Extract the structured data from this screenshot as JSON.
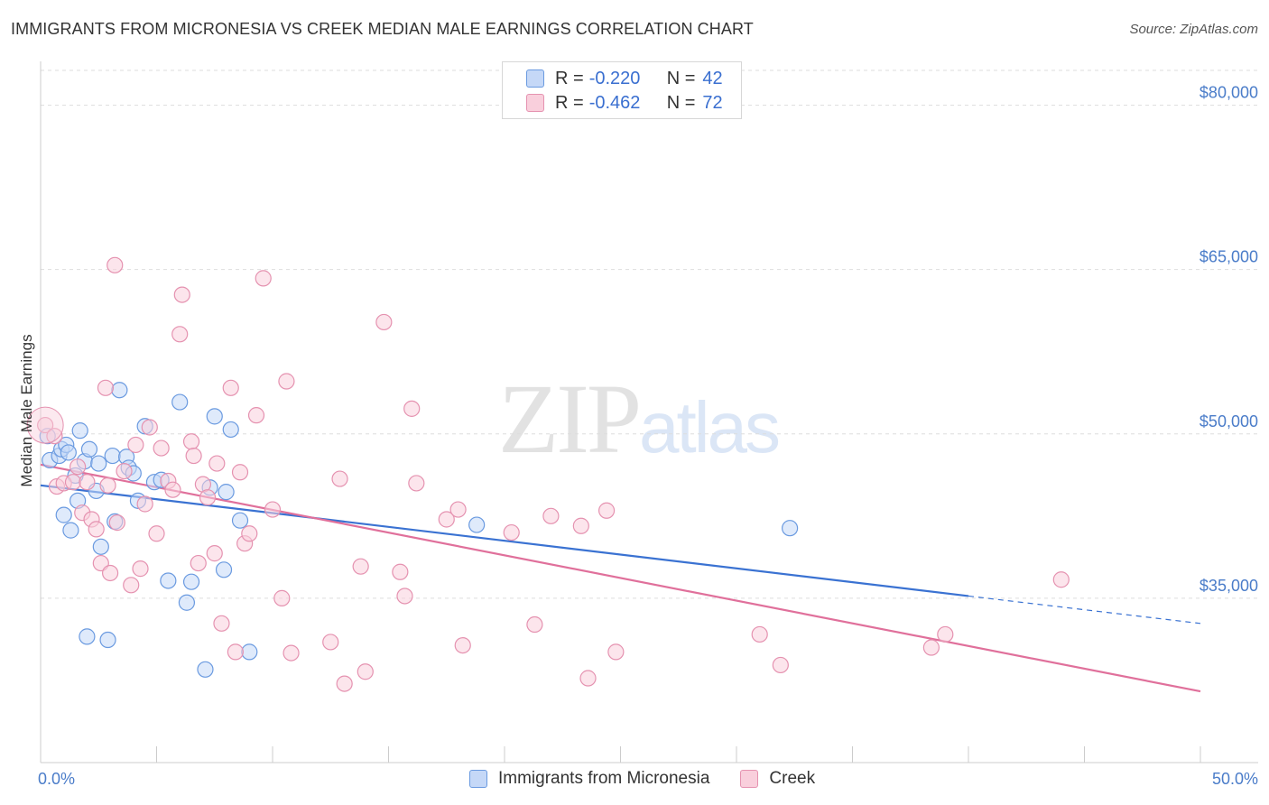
{
  "title": "IMMIGRANTS FROM MICRONESIA VS CREEK MEDIAN MALE EARNINGS CORRELATION CHART",
  "source": "Source: ZipAtlas.com",
  "watermark": {
    "zip": "ZIP",
    "atlas": "atlas"
  },
  "legend": {
    "r_label": "R =",
    "n_label": "N =",
    "series": [
      {
        "r": "-0.220",
        "n": "42"
      },
      {
        "r": "-0.462",
        "n": "72"
      }
    ]
  },
  "colors": {
    "blue_fill": "#c5d8f7",
    "blue_stroke": "#6a9ae0",
    "blue_line": "#3a72d2",
    "pink_fill": "#f9cfdc",
    "pink_stroke": "#e592b0",
    "pink_line": "#e0709b",
    "grid": "#dddddd",
    "tick_label": "#4a7cc9"
  },
  "chart_data": {
    "type": "scatter",
    "title": "IMMIGRANTS FROM MICRONESIA VS CREEK MEDIAN MALE EARNINGS CORRELATION CHART",
    "xlabel": "",
    "ylabel": "Median Male Earnings",
    "xlim": [
      0,
      50
    ],
    "ylim": [
      20000,
      84000
    ],
    "x_tick_labels": [
      {
        "value": 0,
        "label": "0.0%"
      },
      {
        "value": 50,
        "label": "50.0%"
      }
    ],
    "y_ticks": [
      {
        "value": 35000,
        "label": "$35,000"
      },
      {
        "value": 50000,
        "label": "$50,000"
      },
      {
        "value": 65000,
        "label": "$65,000"
      },
      {
        "value": 80000,
        "label": "$80,000"
      }
    ],
    "x_minor_ticks": [
      0,
      5,
      10,
      15,
      20,
      25,
      30,
      35,
      40,
      45,
      50
    ],
    "grid": true,
    "legend_position": "top-center",
    "series": [
      {
        "name": "Immigrants from Micronesia",
        "color": "blue",
        "r": -0.22,
        "n": 42,
        "trend": {
          "x0": 0,
          "y0": 45300,
          "x1": 40,
          "y1": 35200,
          "dash_to_x": 50,
          "dash_to_y": 32700
        },
        "points": [
          [
            0.3,
            49800
          ],
          [
            0.4,
            47600
          ],
          [
            0.8,
            48000
          ],
          [
            0.9,
            48600
          ],
          [
            1.1,
            49000
          ],
          [
            1.0,
            42600
          ],
          [
            1.2,
            48300
          ],
          [
            1.3,
            41200
          ],
          [
            1.5,
            46200
          ],
          [
            1.6,
            43900
          ],
          [
            1.7,
            50300
          ],
          [
            1.9,
            47500
          ],
          [
            2.1,
            48600
          ],
          [
            2.4,
            44800
          ],
          [
            2.5,
            47300
          ],
          [
            2.6,
            39700
          ],
          [
            3.1,
            48000
          ],
          [
            3.2,
            42000
          ],
          [
            3.4,
            54000
          ],
          [
            3.7,
            47900
          ],
          [
            3.8,
            46900
          ],
          [
            4.0,
            46400
          ],
          [
            4.2,
            43900
          ],
          [
            4.5,
            50700
          ],
          [
            4.9,
            45600
          ],
          [
            5.2,
            45800
          ],
          [
            5.5,
            36600
          ],
          [
            6.0,
            52900
          ],
          [
            6.3,
            34600
          ],
          [
            6.5,
            36500
          ],
          [
            7.1,
            28500
          ],
          [
            7.3,
            45100
          ],
          [
            7.5,
            51600
          ],
          [
            7.9,
            37600
          ],
          [
            8.0,
            44700
          ],
          [
            8.2,
            50400
          ],
          [
            8.6,
            42100
          ],
          [
            9.0,
            30100
          ],
          [
            2.0,
            31500
          ],
          [
            2.9,
            31200
          ],
          [
            18.8,
            41700
          ],
          [
            32.3,
            41400
          ]
        ]
      },
      {
        "name": "Creek",
        "color": "pink",
        "r": -0.462,
        "n": 72,
        "trend": {
          "x0": 0,
          "y0": 47200,
          "x1": 50,
          "y1": 26500
        },
        "points": [
          [
            0.2,
            50800
          ],
          [
            0.6,
            49800
          ],
          [
            0.7,
            45200
          ],
          [
            1.0,
            45500
          ],
          [
            1.4,
            45600
          ],
          [
            1.6,
            47000
          ],
          [
            1.8,
            42800
          ],
          [
            2.0,
            45600
          ],
          [
            2.2,
            42200
          ],
          [
            2.4,
            41300
          ],
          [
            2.6,
            38200
          ],
          [
            2.8,
            54200
          ],
          [
            3.0,
            37300
          ],
          [
            3.2,
            65400
          ],
          [
            3.3,
            41900
          ],
          [
            3.6,
            46600
          ],
          [
            3.9,
            36200
          ],
          [
            4.1,
            49000
          ],
          [
            4.3,
            37700
          ],
          [
            4.5,
            43600
          ],
          [
            4.7,
            50600
          ],
          [
            5.0,
            40900
          ],
          [
            5.2,
            48700
          ],
          [
            5.5,
            45700
          ],
          [
            5.7,
            44900
          ],
          [
            6.0,
            59100
          ],
          [
            6.1,
            62700
          ],
          [
            6.5,
            49300
          ],
          [
            6.6,
            48000
          ],
          [
            6.8,
            38200
          ],
          [
            7.0,
            45400
          ],
          [
            7.2,
            44200
          ],
          [
            7.5,
            39100
          ],
          [
            7.6,
            47300
          ],
          [
            7.8,
            32700
          ],
          [
            8.2,
            54200
          ],
          [
            8.4,
            30100
          ],
          [
            8.6,
            46500
          ],
          [
            8.8,
            40000
          ],
          [
            9.0,
            40900
          ],
          [
            9.3,
            51700
          ],
          [
            9.6,
            64200
          ],
          [
            10.0,
            43100
          ],
          [
            10.4,
            35000
          ],
          [
            10.6,
            54800
          ],
          [
            10.8,
            30000
          ],
          [
            12.5,
            31000
          ],
          [
            12.9,
            45900
          ],
          [
            13.1,
            27200
          ],
          [
            13.8,
            37900
          ],
          [
            14.0,
            28300
          ],
          [
            14.8,
            60200
          ],
          [
            15.5,
            37400
          ],
          [
            15.7,
            35200
          ],
          [
            16.0,
            52300
          ],
          [
            16.2,
            45500
          ],
          [
            17.5,
            42200
          ],
          [
            18.0,
            43100
          ],
          [
            18.2,
            30700
          ],
          [
            20.3,
            41000
          ],
          [
            21.3,
            32600
          ],
          [
            22.0,
            42500
          ],
          [
            23.3,
            41600
          ],
          [
            23.6,
            27700
          ],
          [
            24.4,
            43000
          ],
          [
            24.8,
            30100
          ],
          [
            31.0,
            31700
          ],
          [
            31.9,
            28900
          ],
          [
            38.4,
            30500
          ],
          [
            39.0,
            31700
          ],
          [
            44.0,
            36700
          ],
          [
            2.9,
            45300
          ]
        ]
      }
    ],
    "bottom_legend": [
      "Immigrants from Micronesia",
      "Creek"
    ]
  }
}
